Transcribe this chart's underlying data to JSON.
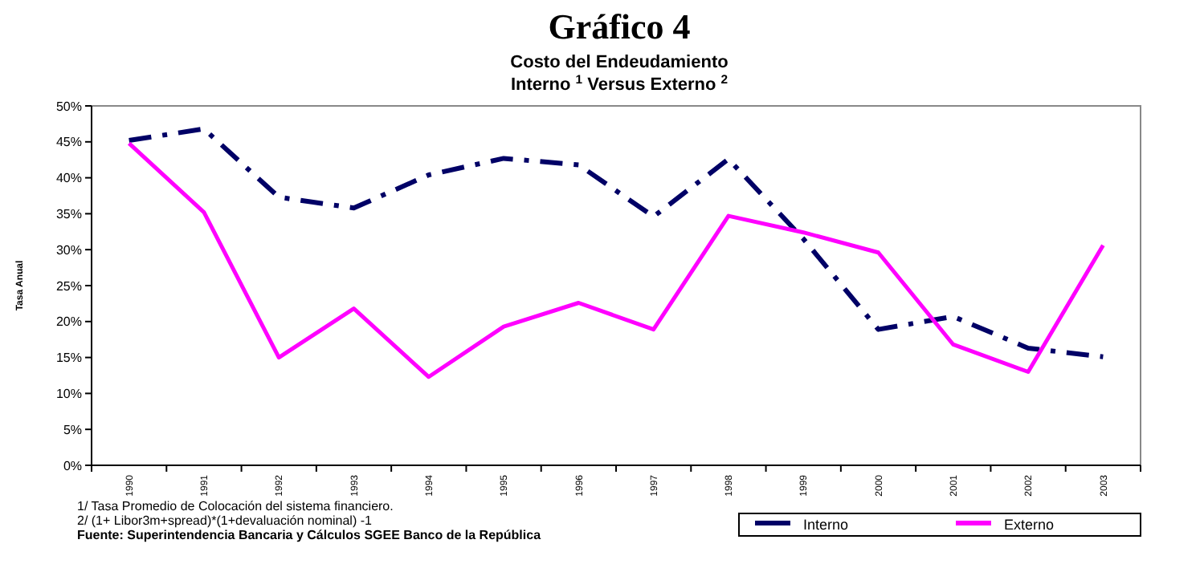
{
  "chart_data": {
    "type": "line",
    "title": "Gráfico 4",
    "subtitle": "Costo del Endeudamiento\nInterno $^{1}$ Versus Externo $^{2}$",
    "ylabel": "Tasa Anual",
    "categories": [
      "1990",
      "1991",
      "1992",
      "1993",
      "1994",
      "1995",
      "1996",
      "1997",
      "1998",
      "1999",
      "2000",
      "2001",
      "2002",
      "2003"
    ],
    "series": [
      {
        "name": "Interno",
        "color": "#000066",
        "line_style": "dashed",
        "values": [
          45.2,
          46.8,
          37.3,
          35.8,
          40.4,
          42.7,
          41.8,
          34.6,
          42.6,
          31.5,
          18.9,
          20.7,
          16.3,
          15.1
        ]
      },
      {
        "name": "Externo",
        "color": "#ff00ff",
        "line_style": "solid",
        "values": [
          44.8,
          35.2,
          15.0,
          21.8,
          12.3,
          19.3,
          22.6,
          18.9,
          34.7,
          32.4,
          29.6,
          16.8,
          13.0,
          30.6
        ]
      }
    ],
    "ylim": [
      0,
      50
    ],
    "yticks": [
      {
        "value": 0,
        "label": "0%"
      },
      {
        "value": 5,
        "label": "5%"
      },
      {
        "value": 10,
        "label": "10%"
      },
      {
        "value": 15,
        "label": "15%"
      },
      {
        "value": 20,
        "label": "20%"
      },
      {
        "value": 25,
        "label": "25%"
      },
      {
        "value": 30,
        "label": "30%"
      },
      {
        "value": 35,
        "label": "35%"
      },
      {
        "value": 40,
        "label": "40%"
      },
      {
        "value": 45,
        "label": "45%"
      },
      {
        "value": 50,
        "label": "50%"
      }
    ],
    "grid": false,
    "legend": "bottom right",
    "marker": "none",
    "annotations": [
      "1/  Tasa Promedio de Colocación del sistema financiero.",
      "2/  (1+ Libor3m+spread)*(1+devaluación nominal) -1",
      "Fuente: Superintendencia Bancaria y Cálculos SGEE Banco de la República"
    ]
  }
}
